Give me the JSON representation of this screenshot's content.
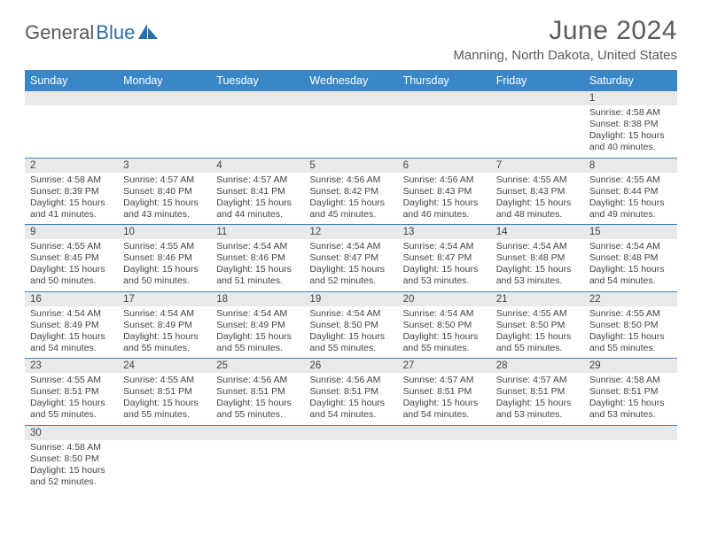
{
  "logo": {
    "text_dark": "General",
    "text_blue": "Blue"
  },
  "title": "June 2024",
  "location": "Manning, North Dakota, United States",
  "colors": {
    "header_bg": "#3a87c7",
    "header_text": "#ffffff",
    "daynum_bg": "#e9e9e9",
    "border": "#3a87c7",
    "text": "#444444",
    "logo_blue": "#2b6ea8",
    "logo_dark": "#5a5a5a"
  },
  "weekdays": [
    "Sunday",
    "Monday",
    "Tuesday",
    "Wednesday",
    "Thursday",
    "Friday",
    "Saturday"
  ],
  "weeks": [
    [
      {
        "n": "",
        "sr": "",
        "ss": "",
        "dl": ""
      },
      {
        "n": "",
        "sr": "",
        "ss": "",
        "dl": ""
      },
      {
        "n": "",
        "sr": "",
        "ss": "",
        "dl": ""
      },
      {
        "n": "",
        "sr": "",
        "ss": "",
        "dl": ""
      },
      {
        "n": "",
        "sr": "",
        "ss": "",
        "dl": ""
      },
      {
        "n": "",
        "sr": "",
        "ss": "",
        "dl": ""
      },
      {
        "n": "1",
        "sr": "Sunrise: 4:58 AM",
        "ss": "Sunset: 8:38 PM",
        "dl": "Daylight: 15 hours and 40 minutes."
      }
    ],
    [
      {
        "n": "2",
        "sr": "Sunrise: 4:58 AM",
        "ss": "Sunset: 8:39 PM",
        "dl": "Daylight: 15 hours and 41 minutes."
      },
      {
        "n": "3",
        "sr": "Sunrise: 4:57 AM",
        "ss": "Sunset: 8:40 PM",
        "dl": "Daylight: 15 hours and 43 minutes."
      },
      {
        "n": "4",
        "sr": "Sunrise: 4:57 AM",
        "ss": "Sunset: 8:41 PM",
        "dl": "Daylight: 15 hours and 44 minutes."
      },
      {
        "n": "5",
        "sr": "Sunrise: 4:56 AM",
        "ss": "Sunset: 8:42 PM",
        "dl": "Daylight: 15 hours and 45 minutes."
      },
      {
        "n": "6",
        "sr": "Sunrise: 4:56 AM",
        "ss": "Sunset: 8:43 PM",
        "dl": "Daylight: 15 hours and 46 minutes."
      },
      {
        "n": "7",
        "sr": "Sunrise: 4:55 AM",
        "ss": "Sunset: 8:43 PM",
        "dl": "Daylight: 15 hours and 48 minutes."
      },
      {
        "n": "8",
        "sr": "Sunrise: 4:55 AM",
        "ss": "Sunset: 8:44 PM",
        "dl": "Daylight: 15 hours and 49 minutes."
      }
    ],
    [
      {
        "n": "9",
        "sr": "Sunrise: 4:55 AM",
        "ss": "Sunset: 8:45 PM",
        "dl": "Daylight: 15 hours and 50 minutes."
      },
      {
        "n": "10",
        "sr": "Sunrise: 4:55 AM",
        "ss": "Sunset: 8:46 PM",
        "dl": "Daylight: 15 hours and 50 minutes."
      },
      {
        "n": "11",
        "sr": "Sunrise: 4:54 AM",
        "ss": "Sunset: 8:46 PM",
        "dl": "Daylight: 15 hours and 51 minutes."
      },
      {
        "n": "12",
        "sr": "Sunrise: 4:54 AM",
        "ss": "Sunset: 8:47 PM",
        "dl": "Daylight: 15 hours and 52 minutes."
      },
      {
        "n": "13",
        "sr": "Sunrise: 4:54 AM",
        "ss": "Sunset: 8:47 PM",
        "dl": "Daylight: 15 hours and 53 minutes."
      },
      {
        "n": "14",
        "sr": "Sunrise: 4:54 AM",
        "ss": "Sunset: 8:48 PM",
        "dl": "Daylight: 15 hours and 53 minutes."
      },
      {
        "n": "15",
        "sr": "Sunrise: 4:54 AM",
        "ss": "Sunset: 8:48 PM",
        "dl": "Daylight: 15 hours and 54 minutes."
      }
    ],
    [
      {
        "n": "16",
        "sr": "Sunrise: 4:54 AM",
        "ss": "Sunset: 8:49 PM",
        "dl": "Daylight: 15 hours and 54 minutes."
      },
      {
        "n": "17",
        "sr": "Sunrise: 4:54 AM",
        "ss": "Sunset: 8:49 PM",
        "dl": "Daylight: 15 hours and 55 minutes."
      },
      {
        "n": "18",
        "sr": "Sunrise: 4:54 AM",
        "ss": "Sunset: 8:49 PM",
        "dl": "Daylight: 15 hours and 55 minutes."
      },
      {
        "n": "19",
        "sr": "Sunrise: 4:54 AM",
        "ss": "Sunset: 8:50 PM",
        "dl": "Daylight: 15 hours and 55 minutes."
      },
      {
        "n": "20",
        "sr": "Sunrise: 4:54 AM",
        "ss": "Sunset: 8:50 PM",
        "dl": "Daylight: 15 hours and 55 minutes."
      },
      {
        "n": "21",
        "sr": "Sunrise: 4:55 AM",
        "ss": "Sunset: 8:50 PM",
        "dl": "Daylight: 15 hours and 55 minutes."
      },
      {
        "n": "22",
        "sr": "Sunrise: 4:55 AM",
        "ss": "Sunset: 8:50 PM",
        "dl": "Daylight: 15 hours and 55 minutes."
      }
    ],
    [
      {
        "n": "23",
        "sr": "Sunrise: 4:55 AM",
        "ss": "Sunset: 8:51 PM",
        "dl": "Daylight: 15 hours and 55 minutes."
      },
      {
        "n": "24",
        "sr": "Sunrise: 4:55 AM",
        "ss": "Sunset: 8:51 PM",
        "dl": "Daylight: 15 hours and 55 minutes."
      },
      {
        "n": "25",
        "sr": "Sunrise: 4:56 AM",
        "ss": "Sunset: 8:51 PM",
        "dl": "Daylight: 15 hours and 55 minutes."
      },
      {
        "n": "26",
        "sr": "Sunrise: 4:56 AM",
        "ss": "Sunset: 8:51 PM",
        "dl": "Daylight: 15 hours and 54 minutes."
      },
      {
        "n": "27",
        "sr": "Sunrise: 4:57 AM",
        "ss": "Sunset: 8:51 PM",
        "dl": "Daylight: 15 hours and 54 minutes."
      },
      {
        "n": "28",
        "sr": "Sunrise: 4:57 AM",
        "ss": "Sunset: 8:51 PM",
        "dl": "Daylight: 15 hours and 53 minutes."
      },
      {
        "n": "29",
        "sr": "Sunrise: 4:58 AM",
        "ss": "Sunset: 8:51 PM",
        "dl": "Daylight: 15 hours and 53 minutes."
      }
    ],
    [
      {
        "n": "30",
        "sr": "Sunrise: 4:58 AM",
        "ss": "Sunset: 8:50 PM",
        "dl": "Daylight: 15 hours and 52 minutes."
      },
      {
        "n": "",
        "sr": "",
        "ss": "",
        "dl": ""
      },
      {
        "n": "",
        "sr": "",
        "ss": "",
        "dl": ""
      },
      {
        "n": "",
        "sr": "",
        "ss": "",
        "dl": ""
      },
      {
        "n": "",
        "sr": "",
        "ss": "",
        "dl": ""
      },
      {
        "n": "",
        "sr": "",
        "ss": "",
        "dl": ""
      },
      {
        "n": "",
        "sr": "",
        "ss": "",
        "dl": ""
      }
    ]
  ]
}
